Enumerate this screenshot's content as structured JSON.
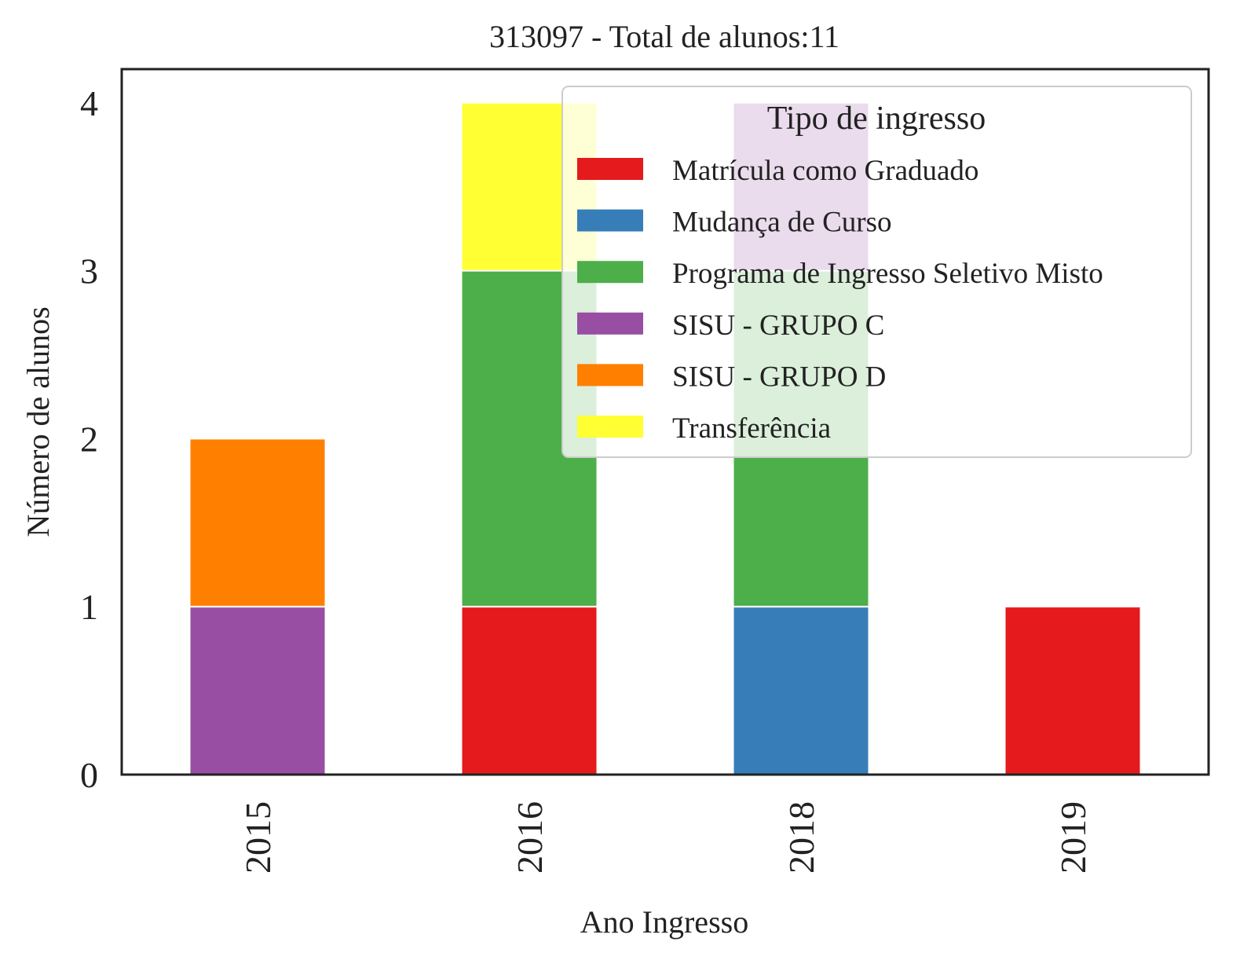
{
  "chart_data": {
    "type": "bar",
    "stacked": true,
    "title": "313097 - Total de alunos:11",
    "xlabel": "Ano Ingresso",
    "ylabel": "Número de alunos",
    "categories": [
      "2015",
      "2016",
      "2018",
      "2019"
    ],
    "ylim": [
      0,
      4.2
    ],
    "yticks": [
      0,
      1,
      2,
      3,
      4
    ],
    "grid": false,
    "legend": {
      "title": "Tipo de ingresso",
      "placement": "top-right"
    },
    "series": [
      {
        "name": "Matrícula como Graduado",
        "color": "#e41a1c",
        "values": [
          0,
          1,
          0,
          1
        ]
      },
      {
        "name": "Mudança de Curso",
        "color": "#377eb8",
        "values": [
          0,
          0,
          1,
          0
        ]
      },
      {
        "name": "Programa de Ingresso Seletivo Misto",
        "color": "#4daf4a",
        "values": [
          0,
          2,
          2,
          0
        ]
      },
      {
        "name": "SISU - GRUPO C",
        "color": "#984ea3",
        "values": [
          1,
          0,
          1,
          0
        ]
      },
      {
        "name": "SISU - GRUPO D",
        "color": "#ff7f00",
        "values": [
          1,
          0,
          0,
          0
        ]
      },
      {
        "name": "Transferência",
        "color": "#ffff33",
        "values": [
          0,
          1,
          0,
          0
        ]
      }
    ]
  }
}
